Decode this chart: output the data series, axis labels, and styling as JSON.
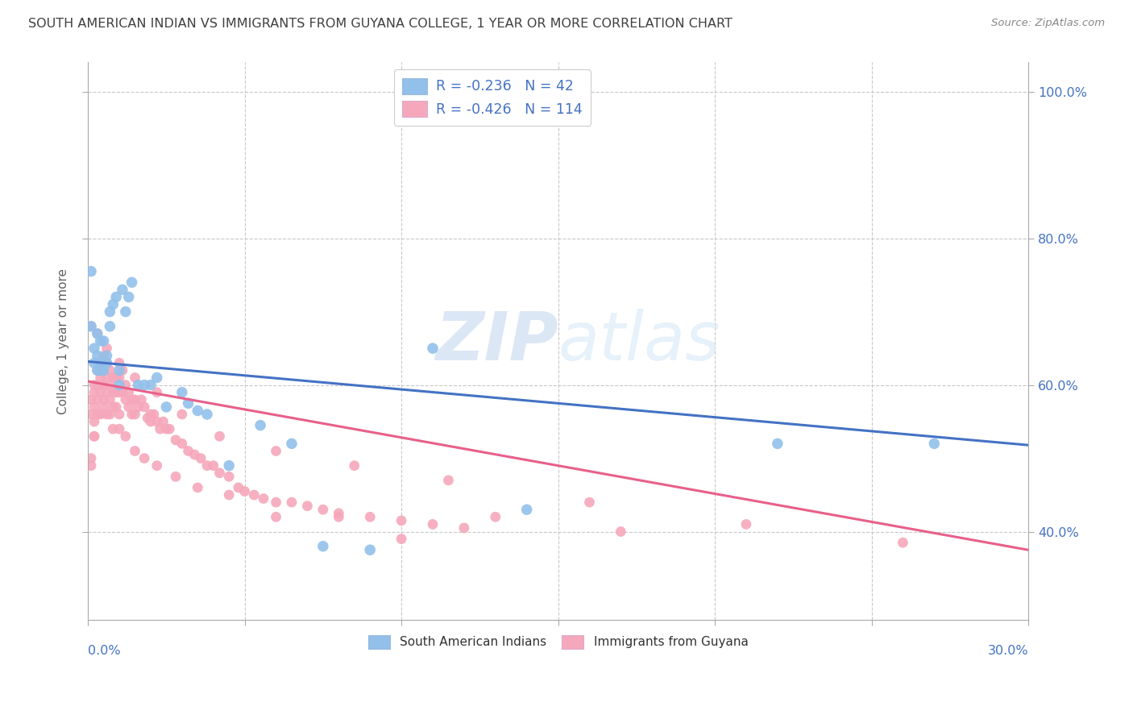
{
  "title": "SOUTH AMERICAN INDIAN VS IMMIGRANTS FROM GUYANA COLLEGE, 1 YEAR OR MORE CORRELATION CHART",
  "source": "Source: ZipAtlas.com",
  "ylabel": "College, 1 year or more",
  "legend_label_blue": "South American Indians",
  "legend_label_pink": "Immigrants from Guyana",
  "watermark_zip": "ZIP",
  "watermark_atlas": "atlas",
  "xlim": [
    0.0,
    0.3
  ],
  "ylim": [
    0.28,
    1.04
  ],
  "yticks_right": [
    1.0,
    0.8,
    0.6,
    0.4
  ],
  "ytick_labels": [
    "100.0%",
    "80.0%",
    "60.0%",
    "40.0%"
  ],
  "xticks": [
    0.0,
    0.05,
    0.1,
    0.15,
    0.2,
    0.25,
    0.3
  ],
  "blue_R": -0.236,
  "blue_N": 42,
  "pink_R": -0.426,
  "pink_N": 114,
  "blue_color": "#92c0ea",
  "pink_color": "#f5a8bb",
  "blue_line_color": "#4472c4",
  "pink_line_color": "#e8608a",
  "background_color": "#ffffff",
  "grid_color": "#c8c8c8",
  "title_color": "#404040",
  "source_color": "#888888",
  "axis_tick_color": "#4472c4",
  "ylabel_color": "#606060",
  "blue_trend_x0": 0.0,
  "blue_trend_y0": 0.632,
  "blue_trend_x1": 0.3,
  "blue_trend_y1": 0.518,
  "pink_trend_x0": 0.0,
  "pink_trend_y0": 0.605,
  "pink_trend_x1": 0.3,
  "pink_trend_y1": 0.375,
  "blue_points_x": [
    0.001,
    0.001,
    0.002,
    0.002,
    0.003,
    0.003,
    0.003,
    0.004,
    0.004,
    0.004,
    0.005,
    0.005,
    0.006,
    0.006,
    0.007,
    0.007,
    0.008,
    0.009,
    0.01,
    0.01,
    0.011,
    0.012,
    0.013,
    0.014,
    0.016,
    0.018,
    0.02,
    0.022,
    0.025,
    0.03,
    0.032,
    0.035,
    0.038,
    0.045,
    0.055,
    0.065,
    0.075,
    0.09,
    0.11,
    0.14,
    0.22,
    0.27
  ],
  "blue_points_y": [
    0.755,
    0.68,
    0.65,
    0.63,
    0.64,
    0.67,
    0.62,
    0.63,
    0.62,
    0.66,
    0.62,
    0.66,
    0.64,
    0.63,
    0.68,
    0.7,
    0.71,
    0.72,
    0.62,
    0.6,
    0.73,
    0.7,
    0.72,
    0.74,
    0.6,
    0.6,
    0.6,
    0.61,
    0.57,
    0.59,
    0.575,
    0.565,
    0.56,
    0.49,
    0.545,
    0.52,
    0.38,
    0.375,
    0.65,
    0.43,
    0.52,
    0.52
  ],
  "pink_points_x": [
    0.001,
    0.001,
    0.001,
    0.002,
    0.002,
    0.002,
    0.002,
    0.002,
    0.003,
    0.003,
    0.003,
    0.003,
    0.004,
    0.004,
    0.004,
    0.004,
    0.005,
    0.005,
    0.005,
    0.005,
    0.006,
    0.006,
    0.006,
    0.007,
    0.007,
    0.007,
    0.007,
    0.008,
    0.008,
    0.008,
    0.009,
    0.009,
    0.009,
    0.01,
    0.01,
    0.01,
    0.011,
    0.011,
    0.012,
    0.012,
    0.013,
    0.013,
    0.014,
    0.014,
    0.015,
    0.015,
    0.016,
    0.017,
    0.018,
    0.019,
    0.02,
    0.02,
    0.021,
    0.022,
    0.023,
    0.024,
    0.025,
    0.026,
    0.028,
    0.03,
    0.032,
    0.034,
    0.036,
    0.038,
    0.04,
    0.042,
    0.045,
    0.048,
    0.05,
    0.053,
    0.056,
    0.06,
    0.065,
    0.07,
    0.075,
    0.08,
    0.09,
    0.1,
    0.11,
    0.12,
    0.001,
    0.002,
    0.003,
    0.004,
    0.005,
    0.006,
    0.008,
    0.01,
    0.012,
    0.015,
    0.018,
    0.022,
    0.028,
    0.035,
    0.045,
    0.06,
    0.08,
    0.1,
    0.13,
    0.17,
    0.001,
    0.003,
    0.006,
    0.01,
    0.015,
    0.022,
    0.03,
    0.042,
    0.06,
    0.085,
    0.115,
    0.16,
    0.21,
    0.26
  ],
  "pink_points_y": [
    0.58,
    0.56,
    0.5,
    0.6,
    0.59,
    0.57,
    0.55,
    0.53,
    0.62,
    0.6,
    0.58,
    0.56,
    0.63,
    0.61,
    0.59,
    0.56,
    0.64,
    0.62,
    0.6,
    0.57,
    0.63,
    0.61,
    0.59,
    0.62,
    0.6,
    0.58,
    0.56,
    0.61,
    0.59,
    0.57,
    0.61,
    0.59,
    0.57,
    0.61,
    0.59,
    0.56,
    0.62,
    0.59,
    0.6,
    0.58,
    0.59,
    0.57,
    0.58,
    0.56,
    0.58,
    0.56,
    0.57,
    0.58,
    0.57,
    0.555,
    0.56,
    0.55,
    0.56,
    0.55,
    0.54,
    0.55,
    0.54,
    0.54,
    0.525,
    0.52,
    0.51,
    0.505,
    0.5,
    0.49,
    0.49,
    0.48,
    0.475,
    0.46,
    0.455,
    0.45,
    0.445,
    0.44,
    0.44,
    0.435,
    0.43,
    0.425,
    0.42,
    0.415,
    0.41,
    0.405,
    0.49,
    0.53,
    0.56,
    0.6,
    0.58,
    0.56,
    0.54,
    0.54,
    0.53,
    0.51,
    0.5,
    0.49,
    0.475,
    0.46,
    0.45,
    0.42,
    0.42,
    0.39,
    0.42,
    0.4,
    0.68,
    0.67,
    0.65,
    0.63,
    0.61,
    0.59,
    0.56,
    0.53,
    0.51,
    0.49,
    0.47,
    0.44,
    0.41,
    0.385
  ]
}
